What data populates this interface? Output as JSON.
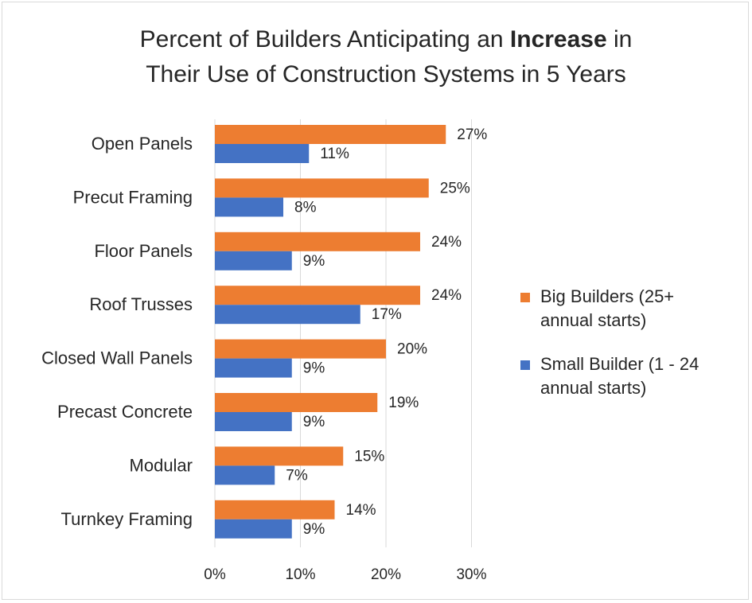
{
  "chart_data": {
    "type": "bar",
    "orientation": "horizontal",
    "title_parts": [
      {
        "text": "Percent of Builders Anticipating an ",
        "bold": false
      },
      {
        "text": "Increase",
        "bold": true
      },
      {
        "text": " in",
        "bold": false
      },
      {
        "text": "\n",
        "bold": false
      },
      {
        "text": "Their Use of Construction Systems in 5 Years",
        "bold": false
      }
    ],
    "categories": [
      "Open Panels",
      "Precut Framing",
      "Floor Panels",
      "Roof Trusses",
      "Closed Wall Panels",
      "Precast Concrete",
      "Modular",
      "Turnkey Framing"
    ],
    "series": [
      {
        "name": "Big Builders (25+ annual starts)",
        "legend_lines": [
          "Big Builders (25+",
          "annual starts)"
        ],
        "color": "#ED7D31",
        "values": [
          27,
          25,
          24,
          24,
          20,
          19,
          15,
          14
        ],
        "labels": [
          "27%",
          "25%",
          "24%",
          "24%",
          "20%",
          "19%",
          "15%",
          "14%"
        ]
      },
      {
        "name": "Small Builder (1 - 24 annual starts)",
        "legend_lines": [
          "Small Builder (1 - 24",
          "annual starts)"
        ],
        "color": "#4472C4",
        "values": [
          11,
          8,
          9,
          17,
          9,
          9,
          7,
          9
        ],
        "labels": [
          "11%",
          "8%",
          "9%",
          "17%",
          "9%",
          "9%",
          "7%",
          "9%"
        ]
      }
    ],
    "xlim": [
      0,
      30
    ],
    "ticks": [
      0,
      10,
      20,
      30
    ],
    "tick_labels": [
      "0%",
      "10%",
      "20%",
      "30%"
    ],
    "gridlines": true,
    "gridline_color": "#d9d9d9",
    "legend_position": "right"
  }
}
